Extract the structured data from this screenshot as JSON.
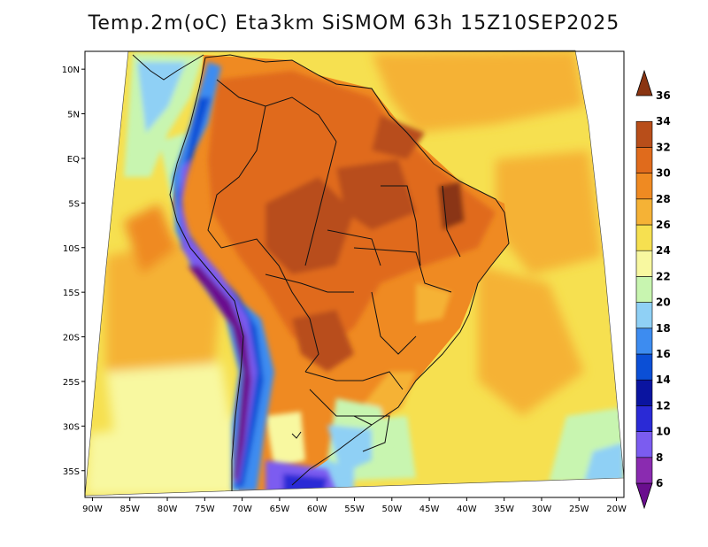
{
  "title": "Temp.2m(oC) Eta3km SiSMOM 63h 15Z10SEP2025",
  "map": {
    "lon_range": [
      -91,
      -19
    ],
    "lat_range": [
      -38,
      12
    ],
    "lat_ticks": [
      {
        "value": 10,
        "label": "10N"
      },
      {
        "value": 5,
        "label": "5N"
      },
      {
        "value": 0,
        "label": "EQ"
      },
      {
        "value": -5,
        "label": "5S"
      },
      {
        "value": -10,
        "label": "10S"
      },
      {
        "value": -15,
        "label": "15S"
      },
      {
        "value": -20,
        "label": "20S"
      },
      {
        "value": -25,
        "label": "25S"
      },
      {
        "value": -30,
        "label": "30S"
      },
      {
        "value": -35,
        "label": "35S"
      }
    ],
    "lon_ticks": [
      {
        "value": -90,
        "label": "90W"
      },
      {
        "value": -85,
        "label": "85W"
      },
      {
        "value": -80,
        "label": "80W"
      },
      {
        "value": -75,
        "label": "75W"
      },
      {
        "value": -70,
        "label": "70W"
      },
      {
        "value": -65,
        "label": "65W"
      },
      {
        "value": -60,
        "label": "60W"
      },
      {
        "value": -55,
        "label": "55W"
      },
      {
        "value": -50,
        "label": "50W"
      },
      {
        "value": -45,
        "label": "45W"
      },
      {
        "value": -40,
        "label": "40W"
      },
      {
        "value": -35,
        "label": "35W"
      },
      {
        "value": -30,
        "label": "30W"
      },
      {
        "value": -25,
        "label": "25W"
      },
      {
        "value": -20,
        "label": "20W"
      }
    ]
  },
  "colorbar": {
    "labels": [
      "6",
      "8",
      "10",
      "12",
      "14",
      "16",
      "18",
      "20",
      "22",
      "24",
      "26",
      "28",
      "30",
      "32",
      "34",
      "36"
    ],
    "colors": [
      "#6a0e8e",
      "#8a2bb0",
      "#7b5cf0",
      "#2a2ad6",
      "#0a14a0",
      "#0b4fd6",
      "#3d8cf0",
      "#8fd0f5",
      "#c8f5b0",
      "#f8f8a0",
      "#f6e050",
      "#f5b236",
      "#ef8a22",
      "#e06b1c",
      "#b84e1a",
      "#8a3512"
    ]
  },
  "legend_title": ""
}
